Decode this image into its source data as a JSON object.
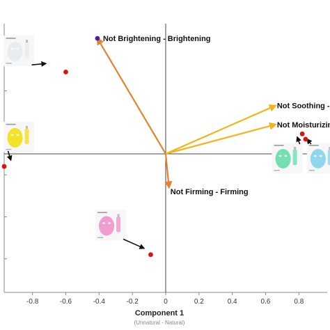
{
  "chart_data": {
    "type": "scatter",
    "title": "",
    "xlabel": "Component 1",
    "xlabel_sub": "(Unnatural - Natural)",
    "ylabel": "",
    "xlim": [
      -0.97,
      0.97
    ],
    "ylim": [
      -0.66,
      0.62
    ],
    "x_ticks": [
      -0.8,
      -0.6,
      -0.4,
      -0.2,
      0,
      0.2,
      0.4,
      0.6,
      0.8
    ],
    "x_tick_labels": [
      "-0.8",
      "-0.6",
      "-0.4",
      "-0.2",
      "0",
      "0.2",
      "0.4",
      "0.6",
      "0.8"
    ],
    "y_ticks": [
      -0.5,
      -0.3,
      -0.1,
      0.1,
      0.3,
      0.5
    ],
    "grid": false,
    "vectors": [
      {
        "label": "Not Brightening - Brightening",
        "x": -0.41,
        "y": 0.55,
        "color": "#e8822a"
      },
      {
        "label": "Not Soothing - So",
        "x": 0.66,
        "y": 0.23,
        "color": "#f2b418"
      },
      {
        "label": "Not Moisturizing - ",
        "x": 0.66,
        "y": 0.14,
        "color": "#f2b418"
      },
      {
        "label": "Not Firming - Firming",
        "x": 0.02,
        "y": -0.16,
        "color": "#e8822a"
      }
    ],
    "points": [
      {
        "x": -0.6,
        "y": 0.39,
        "color": "#dd1111"
      },
      {
        "x": -0.97,
        "y": -0.06,
        "color": "#dd1111"
      },
      {
        "x": -0.09,
        "y": -0.48,
        "color": "#dd1111"
      },
      {
        "x": 0.82,
        "y": 0.095,
        "color": "#dd1111"
      },
      {
        "x": 0.84,
        "y": 0.07,
        "color": "#dd1111"
      },
      {
        "x": -0.41,
        "y": 0.55,
        "color": "#4b1fa0"
      }
    ],
    "product_images": [
      {
        "name": "mask-white",
        "color": "#e6ecef",
        "cx": -0.88,
        "cy": 0.49,
        "px": -0.72,
        "py": 0.43
      },
      {
        "name": "mask-yellow",
        "color": "#f2e22a",
        "cx": -0.88,
        "cy": 0.08,
        "px": -0.93,
        "py": -0.03
      },
      {
        "name": "mask-pink",
        "color": "#f09ccf",
        "cx": -0.33,
        "cy": -0.34,
        "px": -0.13,
        "py": -0.45
      },
      {
        "name": "mask-green",
        "color": "#74e0b2",
        "cx": 0.73,
        "cy": -0.02,
        "px": 0.79,
        "py": 0.08
      },
      {
        "name": "mask-blue",
        "color": "#8fd7ee",
        "cx": 0.94,
        "cy": -0.02,
        "px": 0.85,
        "py": 0.07
      }
    ]
  }
}
